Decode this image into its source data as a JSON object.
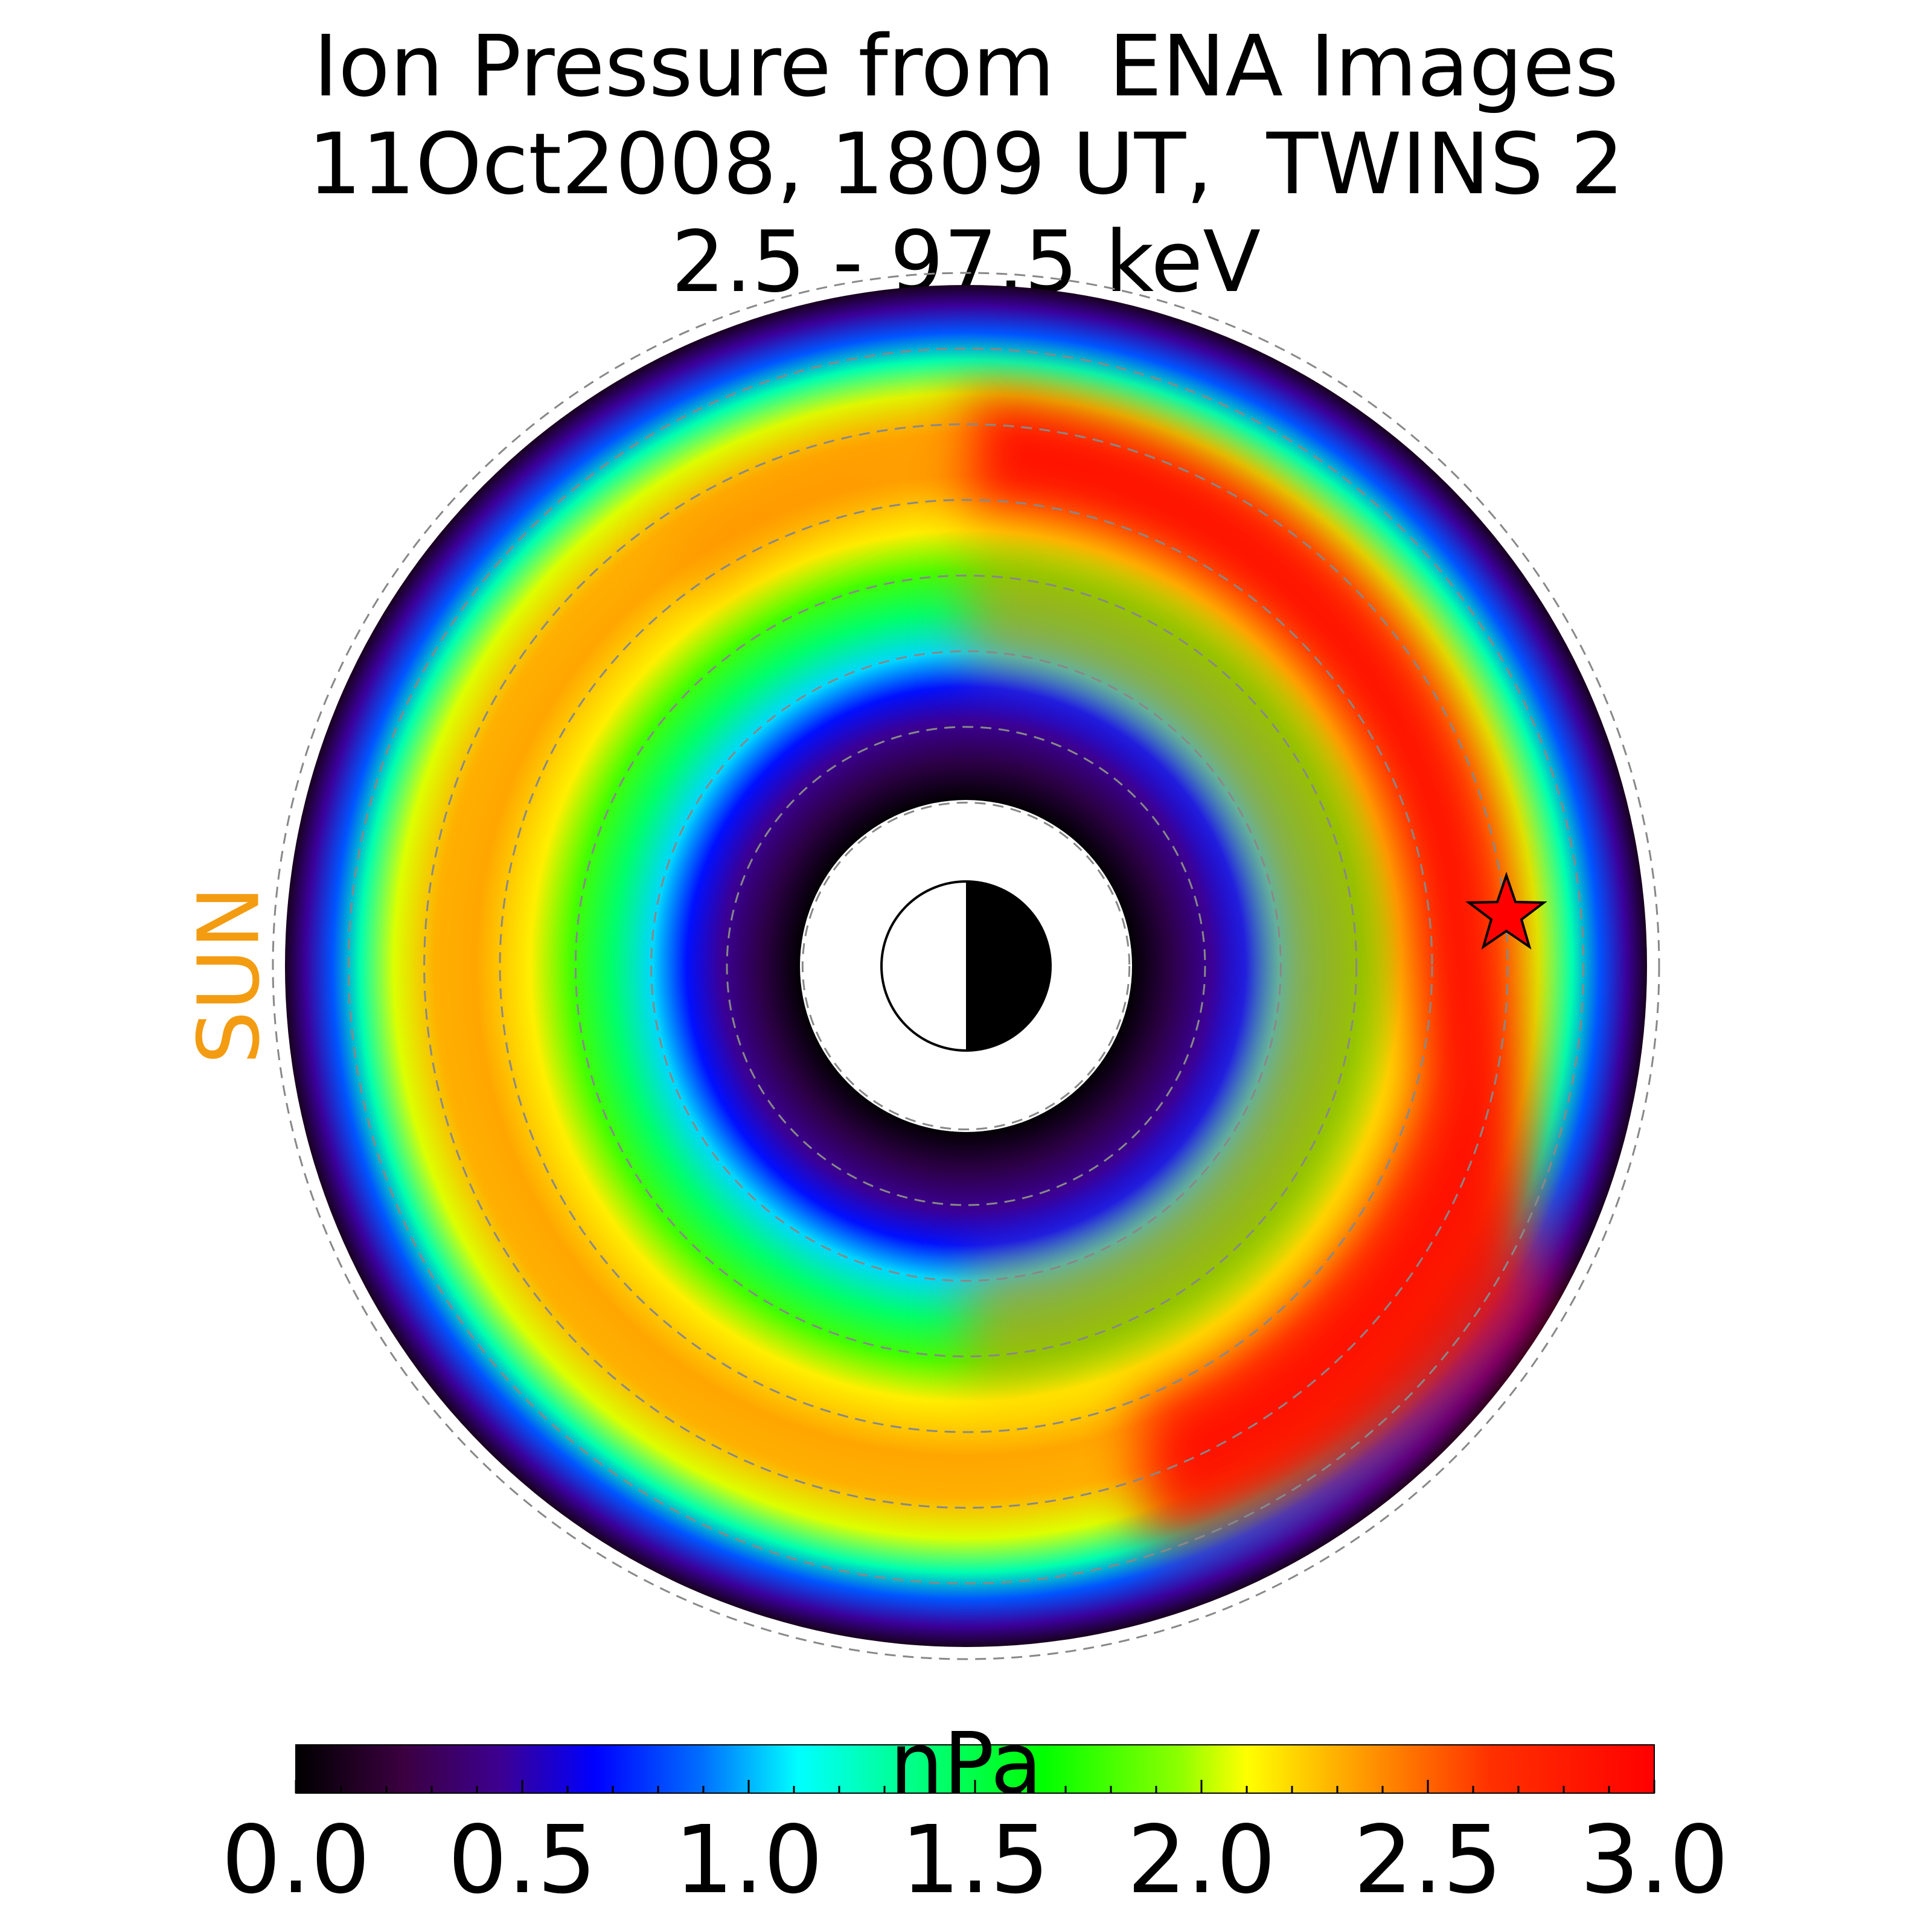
{
  "title_lines": [
    "Ion Pressure from  ENA Images",
    "11Oct2008, 1809 UT,  TWINS 2",
    "2.5 - 97.5 keV"
  ],
  "sun_label": "SUN",
  "colorbar": {
    "label": "nPa",
    "min": 0.0,
    "max": 3.0,
    "ticks": [
      "0.0",
      "0.5",
      "1.0",
      "1.5",
      "2.0",
      "2.5",
      "3.0"
    ],
    "colormap": "nipy_spectral"
  },
  "chart_data": {
    "type": "heatmap",
    "projection": "polar equatorial plane, Sun to the left",
    "value_range": [
      0,
      3.0
    ],
    "units": "nPa",
    "grid_rings": 8,
    "annotations": [
      "red star marker at dusk-side outer ring",
      "Earth symbol at center (day side white, night side black)"
    ],
    "rings": [
      {
        "shell": "inner",
        "peak_value": 0.4,
        "peak_local_time_deg": 0
      },
      {
        "shell": "middle",
        "peak_value": 2.4,
        "peak_local_time_deg": 225
      },
      {
        "shell": "outer",
        "peak_value": 3.0,
        "peak_local_time_deg": 315
      }
    ]
  }
}
